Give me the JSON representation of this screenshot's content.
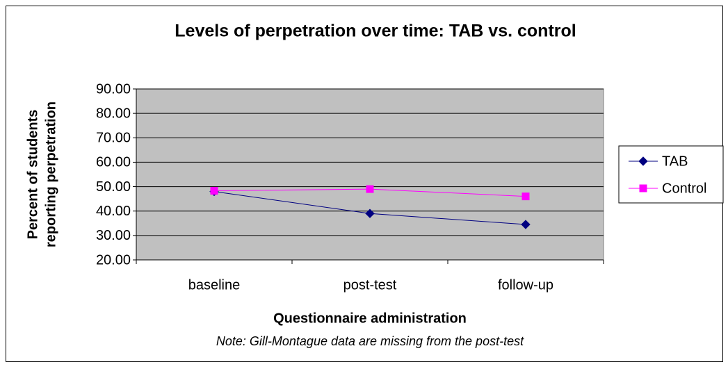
{
  "chart_data": {
    "type": "line",
    "title": "Levels of perpetration over time: TAB vs. control",
    "x_label": "Questionnaire administration",
    "y_label": [
      "Percent of students",
      "reporting perpetration"
    ],
    "note": "Note: Gill-Montague data are missing from the post-test",
    "categories": [
      "baseline",
      "post-test",
      "follow-up"
    ],
    "series": [
      {
        "name": "TAB",
        "color": "#000080",
        "marker": "diamond",
        "values": [
          48.0,
          39.0,
          34.5
        ]
      },
      {
        "name": "Control",
        "color": "#ff00ff",
        "marker": "square",
        "values": [
          48.3,
          49.0,
          46.0
        ]
      }
    ],
    "ylim": [
      20,
      90
    ],
    "yticks": [
      {
        "value": 20,
        "label": "20.00"
      },
      {
        "value": 30,
        "label": "30.00"
      },
      {
        "value": 40,
        "label": "40.00"
      },
      {
        "value": 50,
        "label": "50.00"
      },
      {
        "value": 60,
        "label": "60.00"
      },
      {
        "value": 70,
        "label": "70.00"
      },
      {
        "value": 80,
        "label": "80.00"
      },
      {
        "value": 90,
        "label": "90.00"
      }
    ],
    "grid": true,
    "legend": "right",
    "plot_background": "#c0c0c0"
  }
}
